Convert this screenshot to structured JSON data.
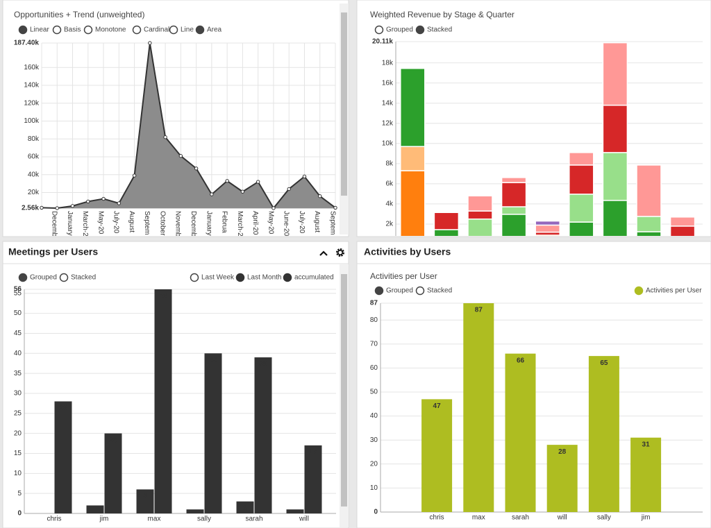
{
  "chart_data": [
    {
      "type": "area",
      "title": "Opportunities + Trend (unweighted)",
      "options": [
        {
          "label": "Linear",
          "selected": true
        },
        {
          "label": "Basis",
          "selected": false
        },
        {
          "label": "Monotone",
          "selected": false
        },
        {
          "label": "Cardinal",
          "selected": false
        },
        {
          "label": "Line",
          "selected": false
        },
        {
          "label": "Area",
          "selected": true
        }
      ],
      "categories": [
        null,
        "Decemb",
        "January",
        "March-2",
        "May-20",
        "July-20",
        "August",
        "Septem",
        "October",
        "Novemb",
        "Decemb",
        "January",
        "Februa",
        "March-2",
        "April-20",
        "May-20",
        "June-20",
        "July-20",
        "August",
        "Septem"
      ],
      "values": [
        3000,
        2560,
        5000,
        10000,
        13000,
        8000,
        39000,
        187400,
        82000,
        61000,
        47000,
        18000,
        33000,
        21000,
        32000,
        2560,
        24000,
        38000,
        16000,
        3000
      ],
      "color": "#8c8c8c",
      "line_color": "#333333",
      "ylim": [
        2560,
        187400
      ],
      "yticks": [
        {
          "value": 2560,
          "label": "2.56k"
        },
        {
          "value": 20000,
          "label": "20k"
        },
        {
          "value": 40000,
          "label": "40k"
        },
        {
          "value": 60000,
          "label": "60k"
        },
        {
          "value": 80000,
          "label": "80k"
        },
        {
          "value": 100000,
          "label": "100k"
        },
        {
          "value": 120000,
          "label": "120k"
        },
        {
          "value": 140000,
          "label": "140k"
        },
        {
          "value": 160000,
          "label": "160k"
        },
        {
          "value": 187400,
          "label": "187.40k"
        }
      ],
      "grid": true
    },
    {
      "type": "bar",
      "stacked": true,
      "title": "Weighted Revenue by Stage & Quarter",
      "options": [
        {
          "label": "Grouped",
          "selected": false
        },
        {
          "label": "Stacked",
          "selected": true
        }
      ],
      "categories": [
        null,
        null,
        null,
        null,
        null,
        null,
        null,
        null,
        null
      ],
      "series": [
        {
          "color": "#ff7f0e",
          "values": [
            7300,
            0,
            0,
            0,
            0,
            0,
            0,
            0,
            0
          ]
        },
        {
          "color": "#ffbb78",
          "values": [
            2400,
            0,
            0,
            0,
            900,
            0,
            0,
            0,
            0
          ]
        },
        {
          "color": "#2ca02c",
          "values": [
            7750,
            1450,
            0,
            2970,
            0,
            2200,
            4350,
            1240,
            0
          ]
        },
        {
          "color": "#98df8a",
          "values": [
            0,
            0,
            2500,
            750,
            0,
            2770,
            4750,
            1520,
            0
          ]
        },
        {
          "color": "#d62728",
          "values": [
            0,
            1700,
            800,
            2400,
            300,
            2890,
            4700,
            0,
            1800
          ]
        },
        {
          "color": "#ff9896",
          "values": [
            0,
            0,
            1500,
            500,
            700,
            1240,
            6200,
            5100,
            900
          ]
        },
        {
          "color": "#9467bd",
          "values": [
            0,
            0,
            0,
            0,
            400,
            0,
            0,
            0,
            0
          ]
        }
      ],
      "ylim": [
        0,
        20110
      ],
      "yticks": [
        {
          "value": 2000,
          "label": "2k"
        },
        {
          "value": 4000,
          "label": "4k"
        },
        {
          "value": 6000,
          "label": "6k"
        },
        {
          "value": 8000,
          "label": "8k"
        },
        {
          "value": 10000,
          "label": "10k"
        },
        {
          "value": 12000,
          "label": "12k"
        },
        {
          "value": 14000,
          "label": "14k"
        },
        {
          "value": 16000,
          "label": "16k"
        },
        {
          "value": 18000,
          "label": "18k"
        },
        {
          "value": 20110,
          "label": "20.11k"
        }
      ],
      "grid": true
    },
    {
      "type": "bar",
      "stacked": false,
      "panel_title": "Meetings per Users",
      "options": [
        {
          "label": "Grouped",
          "selected": true
        },
        {
          "label": "Stacked",
          "selected": false
        }
      ],
      "categories": [
        "chris",
        "jim",
        "max",
        "sally",
        "sarah",
        "will"
      ],
      "series": [
        {
          "name": "Last Week",
          "values": [
            null,
            null,
            null,
            null,
            null,
            null
          ]
        },
        {
          "name": "Last Month",
          "color": "#333333",
          "values": [
            0,
            2,
            6,
            1,
            3,
            1
          ]
        },
        {
          "name": "accumulated",
          "color": "#333333",
          "values": [
            28,
            20,
            56,
            40,
            39,
            17
          ]
        }
      ],
      "ylim": [
        0,
        56
      ],
      "yticks": [
        0,
        5,
        10,
        15,
        20,
        25,
        30,
        35,
        40,
        45,
        50,
        55,
        56
      ],
      "grid": true
    },
    {
      "type": "bar",
      "stacked": false,
      "panel_title": "Activities by Users",
      "title": "Activities per User",
      "options": [
        {
          "label": "Grouped",
          "selected": true
        },
        {
          "label": "Stacked",
          "selected": false
        }
      ],
      "categories": [
        "chris",
        "max",
        "sarah",
        "will",
        "sally",
        "jim"
      ],
      "series": [
        {
          "name": "Activities per User",
          "color": "#aebd21",
          "values": [
            47,
            87,
            66,
            28,
            65,
            31
          ]
        }
      ],
      "ylim": [
        0,
        87
      ],
      "yticks": [
        0,
        10,
        20,
        30,
        40,
        50,
        60,
        70,
        80,
        87
      ],
      "grid": true
    }
  ]
}
